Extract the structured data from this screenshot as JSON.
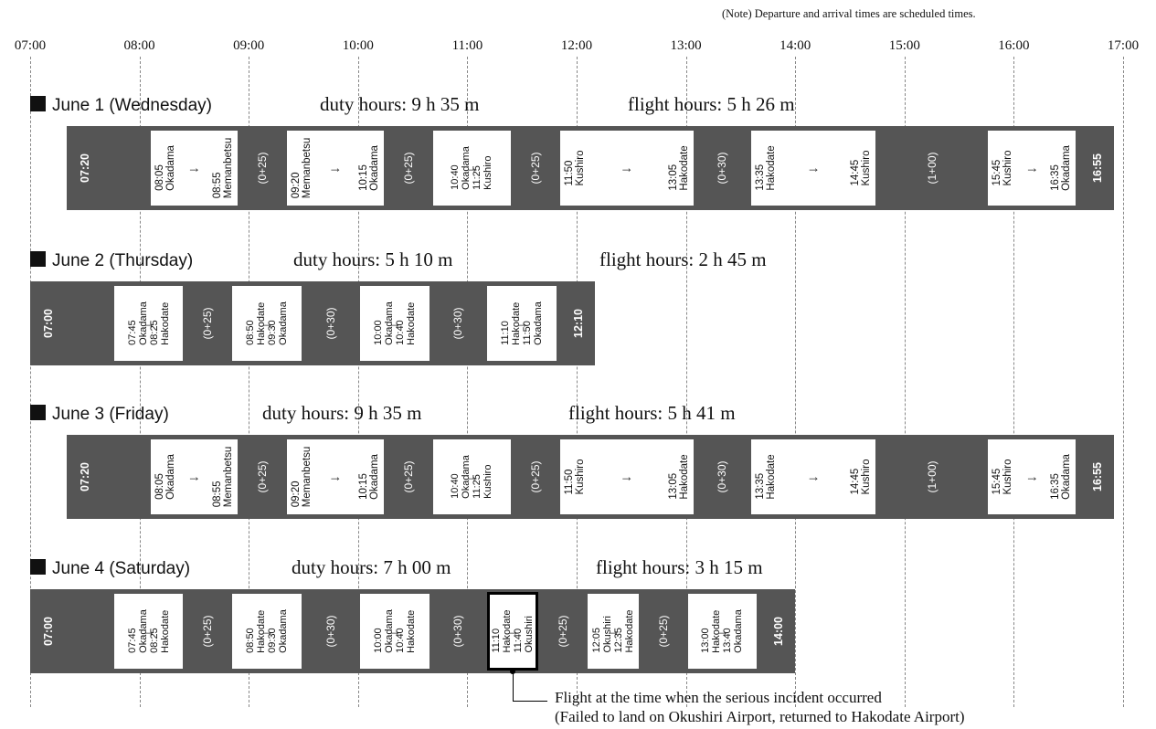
{
  "note": "(Note) Departure and arrival times are scheduled times.",
  "timeline": {
    "start_hour": 7,
    "end_hour": 17,
    "ticks": [
      "07:00",
      "08:00",
      "09:00",
      "10:00",
      "11:00",
      "12:00",
      "13:00",
      "14:00",
      "15:00",
      "16:00",
      "17:00"
    ]
  },
  "days": [
    {
      "title": "June 1 (Wednesday)",
      "duty": "duty hours: 9 h 35 m",
      "flight": "flight hours: 5 h 26 m",
      "start": "07:20",
      "end": "16:55",
      "segments": [
        {
          "type": "flight",
          "dep": "08:05",
          "from": "Okadama",
          "arr": "08:55",
          "to": "Memanbetsu"
        },
        {
          "type": "gap",
          "label": "(0+25)",
          "from_t": "08:55",
          "to_t": "09:20"
        },
        {
          "type": "flight",
          "dep": "09:20",
          "from": "Memanbetsu",
          "arr": "10:15",
          "to": "Okadama"
        },
        {
          "type": "gap",
          "label": "(0+25)",
          "from_t": "10:15",
          "to_t": "10:40"
        },
        {
          "type": "flight",
          "dep": "10:40",
          "from": "Okadama",
          "arr": "11:25",
          "to": "Kushiro"
        },
        {
          "type": "gap",
          "label": "(0+25)",
          "from_t": "11:25",
          "to_t": "11:50"
        },
        {
          "type": "flight",
          "dep": "11:50",
          "from": "Kushiro",
          "arr": "13:05",
          "to": "Hakodate"
        },
        {
          "type": "gap",
          "label": "(0+30)",
          "from_t": "13:05",
          "to_t": "13:35"
        },
        {
          "type": "flight",
          "dep": "13:35",
          "from": "Hakodate",
          "arr": "14:45",
          "to": "Kushiro"
        },
        {
          "type": "gap",
          "label": "(1+00)",
          "from_t": "14:45",
          "to_t": "15:45"
        },
        {
          "type": "flight",
          "dep": "15:45",
          "from": "Kushiro",
          "arr": "16:35",
          "to": "Okadama"
        }
      ]
    },
    {
      "title": "June 2 (Thursday)",
      "duty": "duty hours: 5 h 10 m",
      "flight": "flight hours: 2 h 45 m",
      "start": "07:00",
      "end": "12:10",
      "segments": [
        {
          "type": "flight",
          "dep": "07:45",
          "from": "Okadama",
          "arr": "08:25",
          "to": "Hakodate"
        },
        {
          "type": "gap",
          "label": "(0+25)",
          "from_t": "08:25",
          "to_t": "08:50"
        },
        {
          "type": "flight",
          "dep": "08:50",
          "from": "Hakodate",
          "arr": "09:30",
          "to": "Okadama"
        },
        {
          "type": "gap",
          "label": "(0+30)",
          "from_t": "09:30",
          "to_t": "10:00"
        },
        {
          "type": "flight",
          "dep": "10:00",
          "from": "Okadama",
          "arr": "10:40",
          "to": "Hakodate"
        },
        {
          "type": "gap",
          "label": "(0+30)",
          "from_t": "10:40",
          "to_t": "11:10"
        },
        {
          "type": "flight",
          "dep": "11:10",
          "from": "Hakodate",
          "arr": "11:50",
          "to": "Okadama"
        }
      ]
    },
    {
      "title": "June 3 (Friday)",
      "duty": "duty hours: 9 h 35 m",
      "flight": "flight hours: 5 h 41 m",
      "start": "07:20",
      "end": "16:55",
      "segments": [
        {
          "type": "flight",
          "dep": "08:05",
          "from": "Okadama",
          "arr": "08:55",
          "to": "Memanbetsu"
        },
        {
          "type": "gap",
          "label": "(0+25)",
          "from_t": "08:55",
          "to_t": "09:20"
        },
        {
          "type": "flight",
          "dep": "09:20",
          "from": "Memanbetsu",
          "arr": "10:15",
          "to": "Okadama"
        },
        {
          "type": "gap",
          "label": "(0+25)",
          "from_t": "10:15",
          "to_t": "10:40"
        },
        {
          "type": "flight",
          "dep": "10:40",
          "from": "Okadama",
          "arr": "11:25",
          "to": "Kushiro"
        },
        {
          "type": "gap",
          "label": "(0+25)",
          "from_t": "11:25",
          "to_t": "11:50"
        },
        {
          "type": "flight",
          "dep": "11:50",
          "from": "Kushiro",
          "arr": "13:05",
          "to": "Hakodate"
        },
        {
          "type": "gap",
          "label": "(0+30)",
          "from_t": "13:05",
          "to_t": "13:35"
        },
        {
          "type": "flight",
          "dep": "13:35",
          "from": "Hakodate",
          "arr": "14:45",
          "to": "Kushiro"
        },
        {
          "type": "gap",
          "label": "(1+00)",
          "from_t": "14:45",
          "to_t": "15:45"
        },
        {
          "type": "flight",
          "dep": "15:45",
          "from": "Kushiro",
          "arr": "16:35",
          "to": "Okadama"
        }
      ]
    },
    {
      "title": "June 4 (Saturday)",
      "duty": "duty hours: 7 h 00 m",
      "flight": "flight hours: 3 h 15 m",
      "start": "07:00",
      "end": "14:00",
      "segments": [
        {
          "type": "flight",
          "dep": "07:45",
          "from": "Okadama",
          "arr": "08:25",
          "to": "Hakodate"
        },
        {
          "type": "gap",
          "label": "(0+25)",
          "from_t": "08:25",
          "to_t": "08:50"
        },
        {
          "type": "flight",
          "dep": "08:50",
          "from": "Hakodate",
          "arr": "09:30",
          "to": "Okadama"
        },
        {
          "type": "gap",
          "label": "(0+30)",
          "from_t": "09:30",
          "to_t": "10:00"
        },
        {
          "type": "flight",
          "dep": "10:00",
          "from": "Okadama",
          "arr": "10:40",
          "to": "Hakodate"
        },
        {
          "type": "gap",
          "label": "(0+30)",
          "from_t": "10:40",
          "to_t": "11:10"
        },
        {
          "type": "flight",
          "dep": "11:10",
          "from": "Hakodate",
          "arr": "11:40",
          "to": "Okushiri",
          "incident": true
        },
        {
          "type": "gap",
          "label": "(0+25)",
          "from_t": "11:40",
          "to_t": "12:05"
        },
        {
          "type": "flight",
          "dep": "12:05",
          "from": "Okushiri",
          "arr": "12:35",
          "to": "Hakodate"
        },
        {
          "type": "gap",
          "label": "(0+25)",
          "from_t": "12:35",
          "to_t": "13:00"
        },
        {
          "type": "flight",
          "dep": "13:00",
          "from": "Hakodate",
          "arr": "13:40",
          "to": "Okadama"
        }
      ]
    }
  ],
  "callout": {
    "line1": "Flight at the time when the serious incident occurred",
    "line2": "(Failed to land on Okushiri Airport, returned to Hakodate Airport)"
  }
}
